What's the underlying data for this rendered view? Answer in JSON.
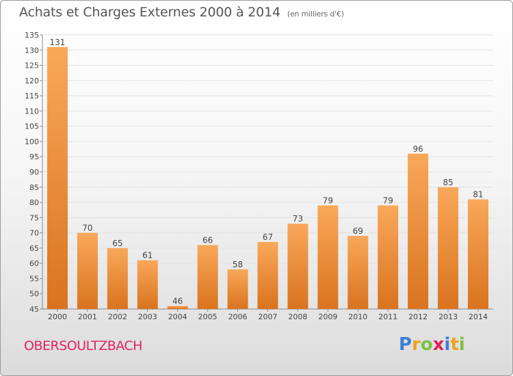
{
  "header": {
    "title": "Achats et Charges Externes 2000 à 2014",
    "subtitle": "(en milliers d'€)"
  },
  "footer": {
    "town": "OBERSOULTZBACH",
    "logo": {
      "letters": [
        "P",
        "r",
        "o",
        "x",
        "i",
        "t",
        "i"
      ],
      "colors": [
        "#3a7fd5",
        "#f0a020",
        "#7cc242",
        "#e0245e",
        "#3a7fd5",
        "#f0a020",
        "#7cc242"
      ]
    }
  },
  "chart_data": {
    "type": "bar",
    "categories": [
      "2000",
      "2001",
      "2002",
      "2003",
      "2004",
      "2005",
      "2006",
      "2007",
      "2008",
      "2009",
      "2010",
      "2011",
      "2012",
      "2013",
      "2014"
    ],
    "values": [
      131,
      70,
      65,
      61,
      46,
      66,
      58,
      67,
      73,
      79,
      69,
      79,
      96,
      85,
      81
    ],
    "data_labels": [
      "131",
      "70",
      "65",
      "61",
      "46",
      "66",
      "58",
      "67",
      "73",
      "79",
      "69",
      "79",
      "96",
      "85",
      "81"
    ],
    "y_ticks": [
      "45",
      "50",
      "55",
      "60",
      "65",
      "70",
      "75",
      "80",
      "85",
      "90",
      "95",
      "100",
      "105",
      "110",
      "115",
      "120",
      "125",
      "130",
      "135"
    ],
    "ylim": [
      45,
      135
    ],
    "grid": true,
    "bar_color_top": "#f9a85a",
    "bar_color_bottom": "#d9731e"
  }
}
